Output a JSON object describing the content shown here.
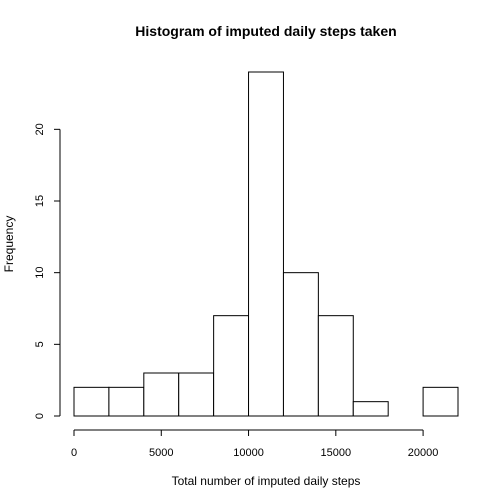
{
  "chart_data": {
    "type": "bar",
    "title": "Histogram of imputed daily steps taken",
    "xlabel": "Total number of imputed daily steps",
    "ylabel": "Frequency",
    "bins": [
      {
        "start": 0,
        "end": 2000,
        "count": 2
      },
      {
        "start": 2000,
        "end": 4000,
        "count": 2
      },
      {
        "start": 4000,
        "end": 6000,
        "count": 3
      },
      {
        "start": 6000,
        "end": 8000,
        "count": 3
      },
      {
        "start": 8000,
        "end": 10000,
        "count": 7
      },
      {
        "start": 10000,
        "end": 12000,
        "count": 24
      },
      {
        "start": 12000,
        "end": 14000,
        "count": 10
      },
      {
        "start": 14000,
        "end": 16000,
        "count": 7
      },
      {
        "start": 16000,
        "end": 18000,
        "count": 1
      },
      {
        "start": 18000,
        "end": 20000,
        "count": 0
      },
      {
        "start": 20000,
        "end": 22000,
        "count": 2
      }
    ],
    "xticks": [
      0,
      5000,
      10000,
      15000,
      20000
    ],
    "yticks": [
      0,
      5,
      10,
      15,
      20
    ],
    "xlim": [
      0,
      22000
    ],
    "ylim": [
      0,
      24
    ],
    "grid": false
  }
}
